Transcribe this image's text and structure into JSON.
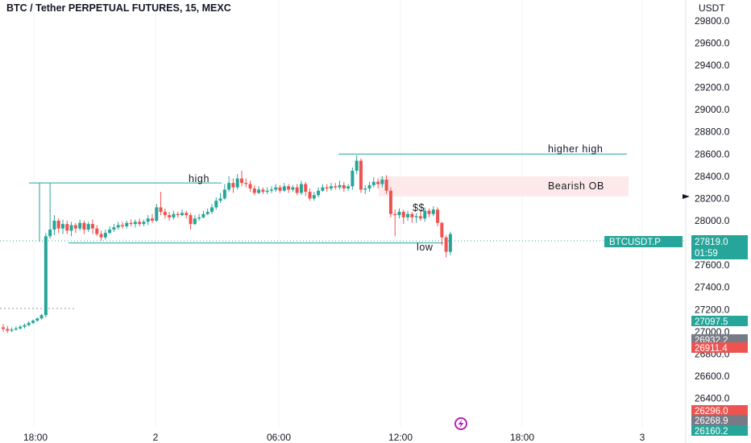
{
  "title": "BTC / Tether PERPETUAL FUTURES, 15, MEXC",
  "currency": "USDT",
  "colors": {
    "up": "#26a69a",
    "down": "#ef5350",
    "grid": "#f0f3fa",
    "zone": "#fde9e9",
    "line": "#26a69a",
    "tag_grey": "#787b86",
    "logo": "#b424b0"
  },
  "chart_data": {
    "type": "candlestick",
    "title": "BTC / Tether PERPETUAL FUTURES, 15, MEXC",
    "ylabel": "USDT",
    "ylim": [
      26100,
      29950
    ],
    "y_ticks": [
      29800,
      29600,
      29400,
      29200,
      29000,
      28800,
      28600,
      28400,
      28200,
      28000,
      27800,
      27600,
      27400,
      27200,
      27000,
      26800,
      26600,
      26400
    ],
    "y_tick_labels": [
      "29800.0",
      "29600.0",
      "29400.0",
      "29200.0",
      "29000.0",
      "28800.0",
      "28600.0",
      "28400.0",
      "28200.0",
      "28000.0",
      "27800.0",
      "27600.0",
      "27400.0",
      "27200.0",
      "27000.0",
      "26800.0",
      "26600.0",
      "26400.0"
    ],
    "x_tick_labels": [
      "18:00",
      "2",
      "06:00",
      "12:00",
      "18:00",
      "3"
    ],
    "candles": [
      [
        27040,
        27025,
        27070,
        27000
      ],
      [
        27025,
        27010,
        27050,
        26990
      ],
      [
        27010,
        27020,
        27040,
        26995
      ],
      [
        27020,
        27030,
        27050,
        27010
      ],
      [
        27030,
        27045,
        27060,
        27020
      ],
      [
        27045,
        27060,
        27075,
        27030
      ],
      [
        27060,
        27080,
        27095,
        27050
      ],
      [
        27080,
        27100,
        27110,
        27070
      ],
      [
        27100,
        27120,
        27130,
        27090
      ],
      [
        27120,
        27150,
        27160,
        27110
      ],
      [
        27150,
        27860,
        27890,
        27130
      ],
      [
        27860,
        27920,
        28340,
        27840
      ],
      [
        27920,
        28000,
        28050,
        27870
      ],
      [
        28000,
        27930,
        28020,
        27890
      ],
      [
        27930,
        27970,
        28010,
        27880
      ],
      [
        27970,
        27910,
        28000,
        27880
      ],
      [
        27910,
        27960,
        27990,
        27860
      ],
      [
        27960,
        27930,
        27980,
        27890
      ],
      [
        27930,
        27980,
        28010,
        27910
      ],
      [
        27980,
        27920,
        28000,
        27880
      ],
      [
        27920,
        27970,
        27990,
        27900
      ],
      [
        27970,
        27930,
        28010,
        27880
      ],
      [
        27930,
        27880,
        27960,
        27860
      ],
      [
        27880,
        27850,
        27910,
        27820
      ],
      [
        27850,
        27890,
        27920,
        27830
      ],
      [
        27890,
        27920,
        27950,
        27880
      ],
      [
        27920,
        27940,
        27970,
        27900
      ],
      [
        27940,
        27960,
        27990,
        27920
      ],
      [
        27960,
        27950,
        27990,
        27930
      ],
      [
        27950,
        27980,
        28000,
        27930
      ],
      [
        27980,
        27970,
        28010,
        27950
      ],
      [
        27970,
        27990,
        28010,
        27940
      ],
      [
        27990,
        27970,
        28020,
        27950
      ],
      [
        27970,
        27990,
        28010,
        27950
      ],
      [
        27990,
        28020,
        28050,
        27960
      ],
      [
        28020,
        28000,
        28060,
        27980
      ],
      [
        28000,
        28120,
        28150,
        27990
      ],
      [
        28120,
        28080,
        28260,
        28050
      ],
      [
        28080,
        28050,
        28110,
        28020
      ],
      [
        28050,
        28030,
        28080,
        28000
      ],
      [
        28030,
        28060,
        28090,
        28010
      ],
      [
        28060,
        28050,
        28080,
        28030
      ],
      [
        28050,
        28070,
        28100,
        28040
      ],
      [
        28070,
        28050,
        28090,
        28020
      ],
      [
        28050,
        27970,
        28070,
        27920
      ],
      [
        27970,
        28020,
        28050,
        27960
      ],
      [
        28020,
        28030,
        28060,
        28000
      ],
      [
        28030,
        28060,
        28090,
        28020
      ],
      [
        28060,
        28080,
        28110,
        28050
      ],
      [
        28080,
        28120,
        28150,
        28060
      ],
      [
        28120,
        28180,
        28210,
        28100
      ],
      [
        28180,
        28200,
        28250,
        28160
      ],
      [
        28200,
        28280,
        28330,
        28190
      ],
      [
        28280,
        28340,
        28400,
        28260
      ],
      [
        28340,
        28300,
        28380,
        28250
      ],
      [
        28300,
        28380,
        28420,
        28280
      ],
      [
        28380,
        28340,
        28450,
        28310
      ],
      [
        28340,
        28330,
        28380,
        28300
      ],
      [
        28330,
        28290,
        28360,
        28260
      ],
      [
        28290,
        28250,
        28320,
        28230
      ],
      [
        28250,
        28280,
        28310,
        28240
      ],
      [
        28280,
        28260,
        28300,
        28240
      ],
      [
        28260,
        28270,
        28300,
        28240
      ],
      [
        28270,
        28280,
        28310,
        28250
      ],
      [
        28280,
        28300,
        28330,
        28260
      ],
      [
        28300,
        28270,
        28320,
        28250
      ],
      [
        28270,
        28310,
        28340,
        28260
      ],
      [
        28310,
        28280,
        28330,
        28250
      ],
      [
        28280,
        28300,
        28320,
        28260
      ],
      [
        28300,
        28250,
        28330,
        28230
      ],
      [
        28250,
        28330,
        28360,
        28230
      ],
      [
        28330,
        28260,
        28350,
        28220
      ],
      [
        28260,
        28200,
        28290,
        28180
      ],
      [
        28200,
        28230,
        28260,
        28180
      ],
      [
        28230,
        28270,
        28300,
        28210
      ],
      [
        28270,
        28300,
        28330,
        28260
      ],
      [
        28300,
        28290,
        28330,
        28260
      ],
      [
        28290,
        28310,
        28340,
        28270
      ],
      [
        28310,
        28300,
        28340,
        28280
      ],
      [
        28300,
        28320,
        28360,
        28280
      ],
      [
        28320,
        28290,
        28350,
        28260
      ],
      [
        28290,
        28310,
        28330,
        28270
      ],
      [
        28310,
        28450,
        28480,
        28280
      ],
      [
        28450,
        28540,
        28590,
        28420
      ],
      [
        28540,
        28280,
        28560,
        28250
      ],
      [
        28280,
        28290,
        28320,
        28240
      ],
      [
        28290,
        28320,
        28350,
        28260
      ],
      [
        28320,
        28350,
        28390,
        28300
      ],
      [
        28350,
        28330,
        28380,
        28290
      ],
      [
        28330,
        28370,
        28400,
        28300
      ],
      [
        28370,
        28270,
        28410,
        28240
      ],
      [
        28270,
        28060,
        28300,
        28030
      ],
      [
        28060,
        28050,
        28100,
        27860
      ],
      [
        28050,
        28080,
        28110,
        28020
      ],
      [
        28080,
        28030,
        28100,
        27970
      ],
      [
        28030,
        28060,
        28090,
        28000
      ],
      [
        28060,
        28030,
        28080,
        27980
      ],
      [
        28030,
        28040,
        28070,
        27980
      ],
      [
        28040,
        28020,
        28090,
        28000
      ],
      [
        28020,
        28090,
        28120,
        27990
      ],
      [
        28090,
        28060,
        28110,
        28030
      ],
      [
        28060,
        28100,
        28130,
        28040
      ],
      [
        28100,
        27980,
        28120,
        27950
      ],
      [
        27980,
        27850,
        27990,
        27780
      ],
      [
        27850,
        27720,
        27870,
        27670
      ],
      [
        27720,
        27880,
        27900,
        27690
      ]
    ],
    "annotations": {
      "high": "high",
      "higher_high": "higher high",
      "bearish_ob": "Bearish OB",
      "low": "low",
      "dollars": "$$"
    },
    "levels": {
      "high": 28340,
      "higher_high": 28600,
      "low": 27800,
      "ob_top": 28400,
      "ob_bottom": 28220,
      "current": 27819,
      "dashed_old": 27210
    }
  },
  "price_tags": {
    "symbol": "BTCUSDT.P",
    "current_price": "27819.0",
    "countdown": "01:59",
    "tag1": "27097.5",
    "tag2": "26932.2",
    "tag3": "26911.4",
    "tag4": "26296.0",
    "tag5": "26268.9",
    "tag6": "26160.2"
  }
}
